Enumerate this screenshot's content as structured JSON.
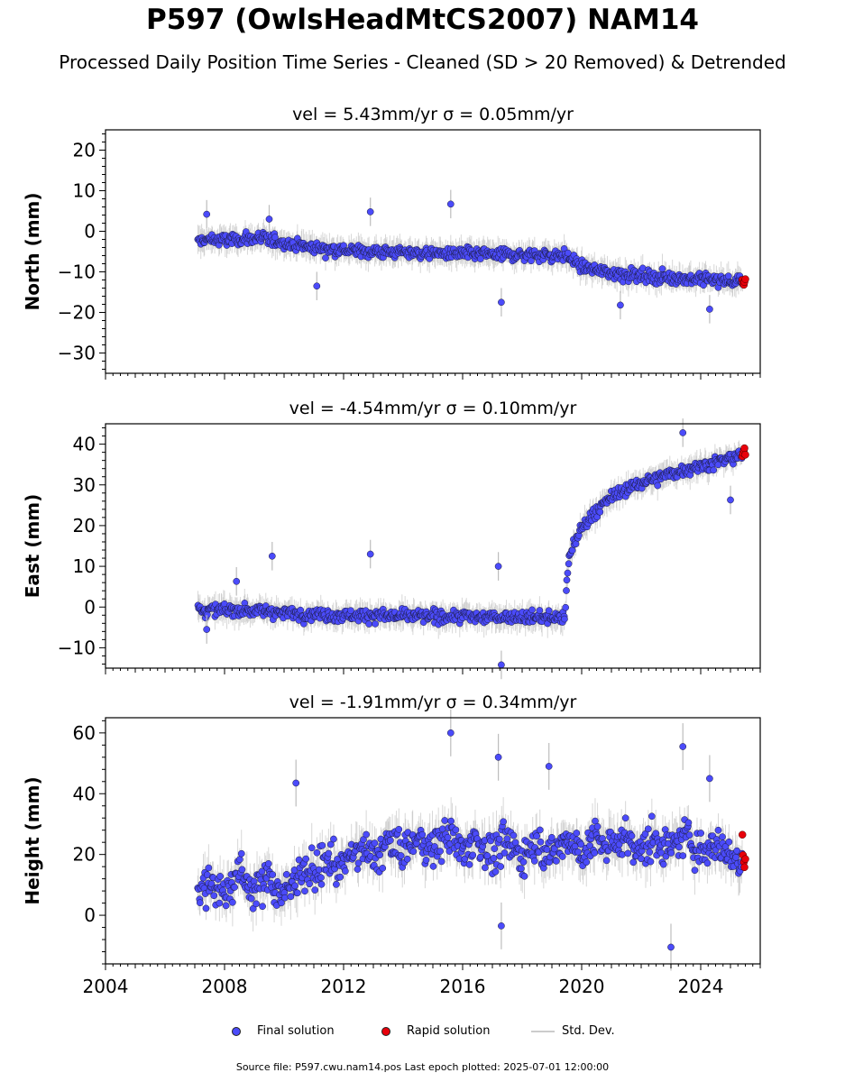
{
  "header": {
    "title": "P597 (OwlsHeadMtCS2007) NAM14",
    "subtitle": "Processed Daily Position Time Series - Cleaned (SD > 20 Removed) & Detrended"
  },
  "legend": {
    "final_label": "Final solution",
    "rapid_label": "Rapid solution",
    "stddev_label": "Std. Dev."
  },
  "footer": {
    "text": "Source file: P597.cwu.nam14.pos  Last epoch plotted: 2025-07-01 12:00:00"
  },
  "colors": {
    "final": "#4b4bfa",
    "rapid": "#e8000b",
    "stddev": "#bdbdbd"
  },
  "chart_data": [
    {
      "type": "scatter",
      "title": "vel = 5.43mm/yr   σ = 0.05mm/yr",
      "ylabel": "North (mm)",
      "xlabel": "",
      "xlim": [
        2004,
        2026
      ],
      "ylim": [
        -35,
        25
      ],
      "yticks": [
        -30,
        -20,
        -10,
        0,
        10,
        20
      ],
      "xticks": [
        2004,
        2008,
        2012,
        2016,
        2020,
        2024
      ],
      "grid": false,
      "series": [
        {
          "name": "Final solution",
          "x": [
            2007.1,
            2007.5,
            2008.0,
            2008.5,
            2009.0,
            2009.5,
            2010.0,
            2010.5,
            2011.0,
            2011.5,
            2012.0,
            2012.5,
            2013.0,
            2013.5,
            2014.0,
            2014.5,
            2015.0,
            2015.5,
            2016.0,
            2016.5,
            2017.0,
            2017.5,
            2018.0,
            2018.5,
            2019.0,
            2019.5,
            2020.0,
            2020.5,
            2021.0,
            2021.5,
            2022.0,
            2022.5,
            2023.0,
            2023.5,
            2024.0,
            2024.5,
            2025.0,
            2025.4
          ],
          "y": [
            -2.5,
            -2.0,
            -2.2,
            -2.0,
            -1.8,
            -2.0,
            -2.8,
            -3.5,
            -4.0,
            -4.3,
            -4.6,
            -4.9,
            -5.0,
            -5.1,
            -5.2,
            -5.3,
            -5.4,
            -5.5,
            -5.6,
            -5.6,
            -5.7,
            -5.7,
            -5.8,
            -5.8,
            -5.9,
            -6.0,
            -8.8,
            -9.6,
            -10.2,
            -10.6,
            -10.9,
            -11.2,
            -11.4,
            -11.6,
            -11.8,
            -12.0,
            -12.3,
            -12.5
          ]
        },
        {
          "name": "Rapid solution",
          "x": [
            2025.4,
            2025.42,
            2025.45,
            2025.47,
            2025.5
          ],
          "y": [
            -12.0,
            -12.8,
            -13.2,
            -12.5,
            -11.8
          ]
        }
      ],
      "outliers": {
        "x": [
          2007.4,
          2009.5,
          2012.9,
          2015.6,
          2017.3,
          2011.1,
          2021.3,
          2024.3
        ],
        "y": [
          4.2,
          3.0,
          4.8,
          6.7,
          -17.5,
          -13.5,
          -18.2,
          -19.2
        ]
      }
    },
    {
      "type": "scatter",
      "title": "vel = -4.54mm/yr   σ = 0.10mm/yr",
      "ylabel": "East (mm)",
      "xlabel": "",
      "xlim": [
        2004,
        2026
      ],
      "ylim": [
        -15,
        45
      ],
      "yticks": [
        -10,
        0,
        10,
        20,
        30,
        40
      ],
      "xticks": [
        2004,
        2008,
        2012,
        2016,
        2020,
        2024
      ],
      "grid": false,
      "series": [
        {
          "name": "Final solution",
          "x": [
            2007.1,
            2007.5,
            2008.0,
            2008.5,
            2009.0,
            2009.5,
            2010.0,
            2010.5,
            2011.0,
            2011.5,
            2012.0,
            2012.5,
            2013.0,
            2013.5,
            2014.0,
            2014.5,
            2015.0,
            2015.5,
            2016.0,
            2016.5,
            2017.0,
            2017.5,
            2018.0,
            2018.5,
            2019.0,
            2019.45,
            2019.5,
            2019.6,
            2019.75,
            2020.0,
            2020.3,
            2020.6,
            2021.0,
            2021.5,
            2022.0,
            2022.5,
            2023.0,
            2023.5,
            2024.0,
            2024.5,
            2025.0,
            2025.4
          ],
          "y": [
            -0.5,
            -0.8,
            -0.6,
            -0.7,
            -0.9,
            -1.0,
            -1.4,
            -1.6,
            -1.8,
            -1.9,
            -2.0,
            -2.0,
            -2.1,
            -2.1,
            -2.2,
            -2.2,
            -2.3,
            -2.3,
            -2.3,
            -2.4,
            -2.4,
            -2.4,
            -2.5,
            -2.5,
            -2.6,
            -2.6,
            6.0,
            12.5,
            16.0,
            19.5,
            22.0,
            24.5,
            27.0,
            29.0,
            30.5,
            31.7,
            32.8,
            33.8,
            34.7,
            35.5,
            36.5,
            37.2
          ]
        },
        {
          "name": "Rapid solution",
          "x": [
            2025.4,
            2025.42,
            2025.45,
            2025.47,
            2025.5
          ],
          "y": [
            37.0,
            37.8,
            38.5,
            39.0,
            37.4
          ]
        }
      ],
      "outliers": {
        "x": [
          2009.6,
          2012.9,
          2017.2,
          2017.3,
          2023.4,
          2025.0,
          2007.4,
          2008.4
        ],
        "y": [
          12.5,
          13.0,
          10.0,
          -14.2,
          42.8,
          26.3,
          -5.5,
          6.3
        ]
      }
    },
    {
      "type": "scatter",
      "title": "vel = -1.91mm/yr   σ = 0.34mm/yr",
      "ylabel": "Height (mm)",
      "xlabel": "",
      "xlim": [
        2004,
        2026
      ],
      "ylim": [
        -16,
        65
      ],
      "yticks": [
        0,
        20,
        40,
        60
      ],
      "xticks": [
        2004,
        2008,
        2012,
        2016,
        2020,
        2024
      ],
      "xticklabels": [
        "2004",
        "2008",
        "2012",
        "2016",
        "2020",
        "2024"
      ],
      "grid": false,
      "series": [
        {
          "name": "Final solution",
          "x": [
            2007.1,
            2007.5,
            2008.0,
            2008.5,
            2009.0,
            2009.5,
            2010.0,
            2010.5,
            2011.0,
            2011.5,
            2012.0,
            2012.5,
            2013.0,
            2013.5,
            2014.0,
            2014.5,
            2015.0,
            2015.5,
            2016.0,
            2016.5,
            2017.0,
            2017.5,
            2018.0,
            2018.5,
            2019.0,
            2019.5,
            2020.0,
            2020.5,
            2021.0,
            2021.5,
            2022.0,
            2022.5,
            2023.0,
            2023.5,
            2024.0,
            2024.5,
            2025.0,
            2025.4
          ],
          "y": [
            6.0,
            12.0,
            7.0,
            14.0,
            8.0,
            13.0,
            6.0,
            15.0,
            14.0,
            18.0,
            17.0,
            22.0,
            19.0,
            24.0,
            21.0,
            25.0,
            22.0,
            27.0,
            21.0,
            25.0,
            20.0,
            24.0,
            19.0,
            24.0,
            20.0,
            25.0,
            21.0,
            25.0,
            22.0,
            26.0,
            21.0,
            25.0,
            22.0,
            26.0,
            21.0,
            24.0,
            19.0,
            18.0
          ]
        },
        {
          "name": "Rapid solution",
          "x": [
            2025.4,
            2025.42,
            2025.45,
            2025.47,
            2025.5
          ],
          "y": [
            26.5,
            19.8,
            17.5,
            15.8,
            18.5
          ]
        }
      ],
      "outliers": {
        "x": [
          2010.4,
          2015.6,
          2017.2,
          2018.9,
          2023.4,
          2023.0,
          2017.3,
          2024.3
        ],
        "y": [
          43.5,
          60.0,
          52.0,
          49.0,
          55.5,
          -10.5,
          -3.5,
          45.0
        ]
      }
    }
  ]
}
